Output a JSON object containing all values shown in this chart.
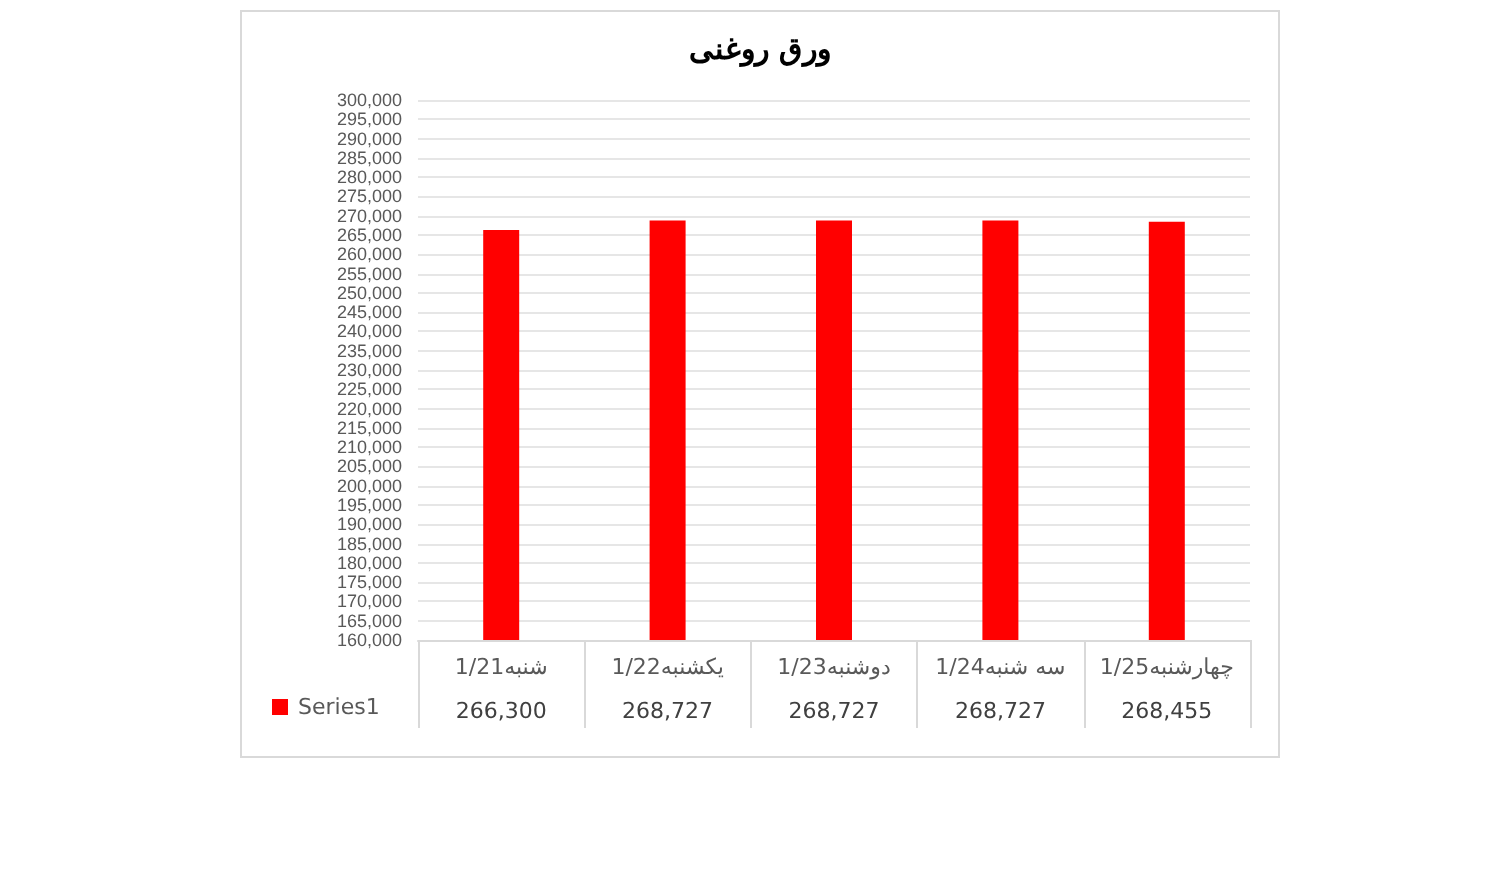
{
  "chart_data": {
    "type": "bar",
    "title": "ورق روغنی",
    "categories": [
      "شنبه1/21",
      "یکشنبه1/22",
      "دوشنبه1/23",
      "سه شنبه1/24",
      "چهارشنبه1/25"
    ],
    "series": [
      {
        "name": "Series1",
        "color": "#ff0000",
        "values": [
          266300,
          268727,
          268727,
          268727,
          268455
        ],
        "value_labels": [
          "266,300",
          "268,727",
          "268,727",
          "268,727",
          "268,455"
        ]
      }
    ],
    "ylim": [
      160000,
      300000
    ],
    "yticks": [
      {
        "value": 160000,
        "label": "160,000"
      },
      {
        "value": 165000,
        "label": "165,000"
      },
      {
        "value": 170000,
        "label": "170,000"
      },
      {
        "value": 175000,
        "label": "175,000"
      },
      {
        "value": 180000,
        "label": "180,000"
      },
      {
        "value": 185000,
        "label": "185,000"
      },
      {
        "value": 190000,
        "label": "190,000"
      },
      {
        "value": 195000,
        "label": "195,000"
      },
      {
        "value": 200000,
        "label": "200,000"
      },
      {
        "value": 205000,
        "label": "205,000"
      },
      {
        "value": 210000,
        "label": "210,000"
      },
      {
        "value": 215000,
        "label": "215,000"
      },
      {
        "value": 220000,
        "label": "220,000"
      },
      {
        "value": 225000,
        "label": "225,000"
      },
      {
        "value": 230000,
        "label": "230,000"
      },
      {
        "value": 235000,
        "label": "235,000"
      },
      {
        "value": 240000,
        "label": "240,000"
      },
      {
        "value": 245000,
        "label": "245,000"
      },
      {
        "value": 250000,
        "label": "250,000"
      },
      {
        "value": 255000,
        "label": "255,000"
      },
      {
        "value": 260000,
        "label": "260,000"
      },
      {
        "value": 265000,
        "label": "265,000"
      },
      {
        "value": 270000,
        "label": "270,000"
      },
      {
        "value": 275000,
        "label": "275,000"
      },
      {
        "value": 280000,
        "label": "280,000"
      },
      {
        "value": 285000,
        "label": "285,000"
      },
      {
        "value": 290000,
        "label": "290,000"
      },
      {
        "value": 295000,
        "label": "295,000"
      },
      {
        "value": 300000,
        "label": "300,000"
      }
    ],
    "grid": "y",
    "legend": "bottom left"
  }
}
